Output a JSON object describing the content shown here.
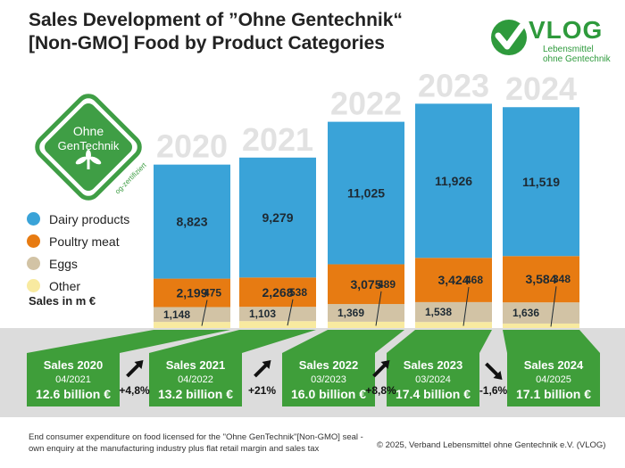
{
  "title_line1": "Sales Development of ”Ohne Gentechnik“",
  "title_line2": "[Non-GMO] Food by Product Categories",
  "logo": {
    "name": "VLOG",
    "subtitle_line1": "Lebensmittel",
    "subtitle_line2": "ohne Gentechnik"
  },
  "badge": {
    "line1": "Ohne",
    "line2": "GenTechnik",
    "url": "og-zertifiziert.org"
  },
  "legend": [
    {
      "label": "Dairy products",
      "color": "#3aa3d8"
    },
    {
      "label": "Poultry meat",
      "color": "#e77b12"
    },
    {
      "label": "Eggs",
      "color": "#d2c3a5"
    },
    {
      "label": "Other",
      "color": "#f8eaa0"
    }
  ],
  "unit_label": "Sales in m €",
  "chart_data": {
    "type": "bar",
    "stacked": true,
    "ylabel": "Sales in m €",
    "categories": [
      "2020",
      "2021",
      "2022",
      "2023",
      "2024"
    ],
    "series": [
      {
        "name": "Dairy products",
        "values": [
          8823,
          9279,
          11025,
          11926,
          11519
        ],
        "labels": [
          "8,823",
          "9,279",
          "11,025",
          "11,926",
          "11,519"
        ],
        "color": "#3aa3d8"
      },
      {
        "name": "Poultry meat",
        "values": [
          2199,
          2268,
          3075,
          3424,
          3584
        ],
        "labels": [
          "2,199",
          "2,268",
          "3,075",
          "3,424",
          "3,584"
        ],
        "color": "#e77b12"
      },
      {
        "name": "Eggs",
        "values": [
          1148,
          1103,
          1369,
          1538,
          1636
        ],
        "labels": [
          "1,148",
          "1,103",
          "1,369",
          "1,538",
          "1,636"
        ],
        "color": "#d2c3a5"
      },
      {
        "name": "Other",
        "values": [
          475,
          538,
          489,
          468,
          348
        ],
        "labels": [
          "475",
          "538",
          "489",
          "468",
          "348"
        ],
        "color": "#f8eaa0"
      }
    ],
    "totals": [
      {
        "heading": "Sales 2020",
        "date": "04/2021",
        "value": "12.6 billion €"
      },
      {
        "heading": "Sales 2021",
        "date": "04/2022",
        "value": "13.2 billion €"
      },
      {
        "heading": "Sales 2022",
        "date": "03/2023",
        "value": "16.0 billion €"
      },
      {
        "heading": "Sales 2023",
        "date": "03/2024",
        "value": "17.4 billion €"
      },
      {
        "heading": "Sales 2024",
        "date": "04/2025",
        "value": "17.1 billion €"
      }
    ],
    "growth": [
      {
        "label": "+4,8%",
        "direction": "up"
      },
      {
        "label": "+21%",
        "direction": "up"
      },
      {
        "label": "+8,8%",
        "direction": "up"
      },
      {
        "label": "-1,6%",
        "direction": "down"
      }
    ]
  },
  "footnote_line1": "End consumer expenditure on food licensed for the \"Ohne GenTechnik\"[Non-GMO] seal -",
  "footnote_line2": "own enquiry at the manufacturing industry plus flat retail margin and sales tax",
  "copyright": "© 2025, Verband Lebensmittel ohne Gentechnik e.V. (VLOG)"
}
